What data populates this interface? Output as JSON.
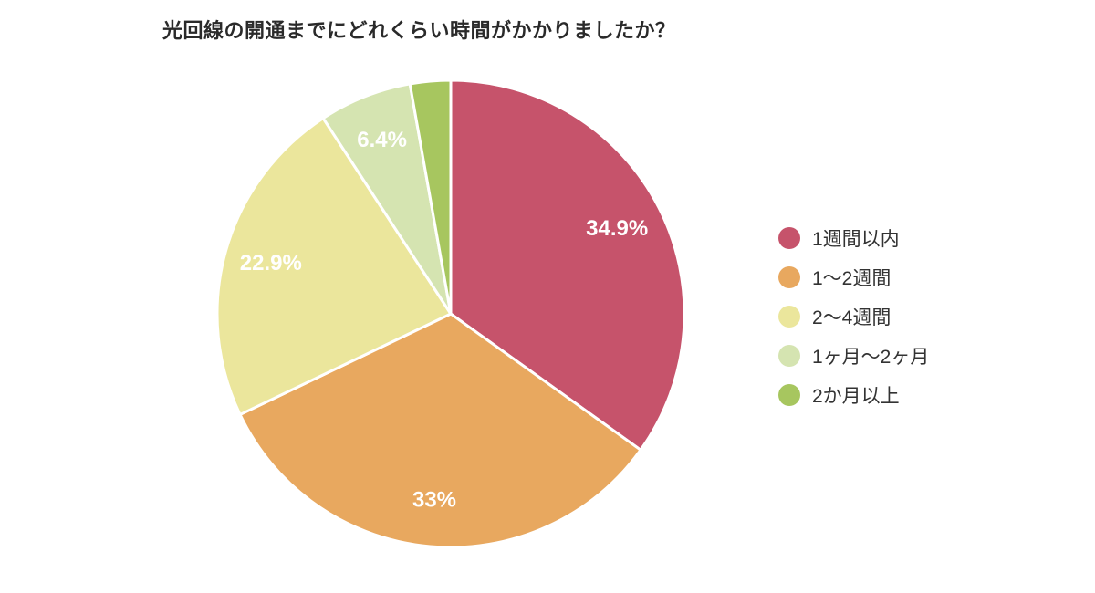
{
  "chart_data": {
    "type": "pie",
    "title": "光回線の開通までにどれくらい時間がかかりましたか？",
    "categories": [
      "1週間以内",
      "1〜2週間",
      "2〜4週間",
      "1ヶ月〜2ヶ月",
      "2か月以上"
    ],
    "values": [
      34.9,
      33,
      22.9,
      6.4,
      2.8
    ],
    "slice_labels": [
      "34.9%",
      "33%",
      "22.9%",
      "6.4%",
      ""
    ],
    "colors": [
      "#C6536B",
      "#E8A85F",
      "#EBE69C",
      "#D5E4B1",
      "#A7C65F"
    ],
    "slice_border_color": "#FFFFFF",
    "label_color": "#FFFFFF",
    "title_color": "#2A2A2A",
    "legend_text_color": "#333333",
    "background_color": "#FFFFFF",
    "legend_position": "right",
    "start_angle_deg": 0,
    "direction": "clockwise"
  }
}
